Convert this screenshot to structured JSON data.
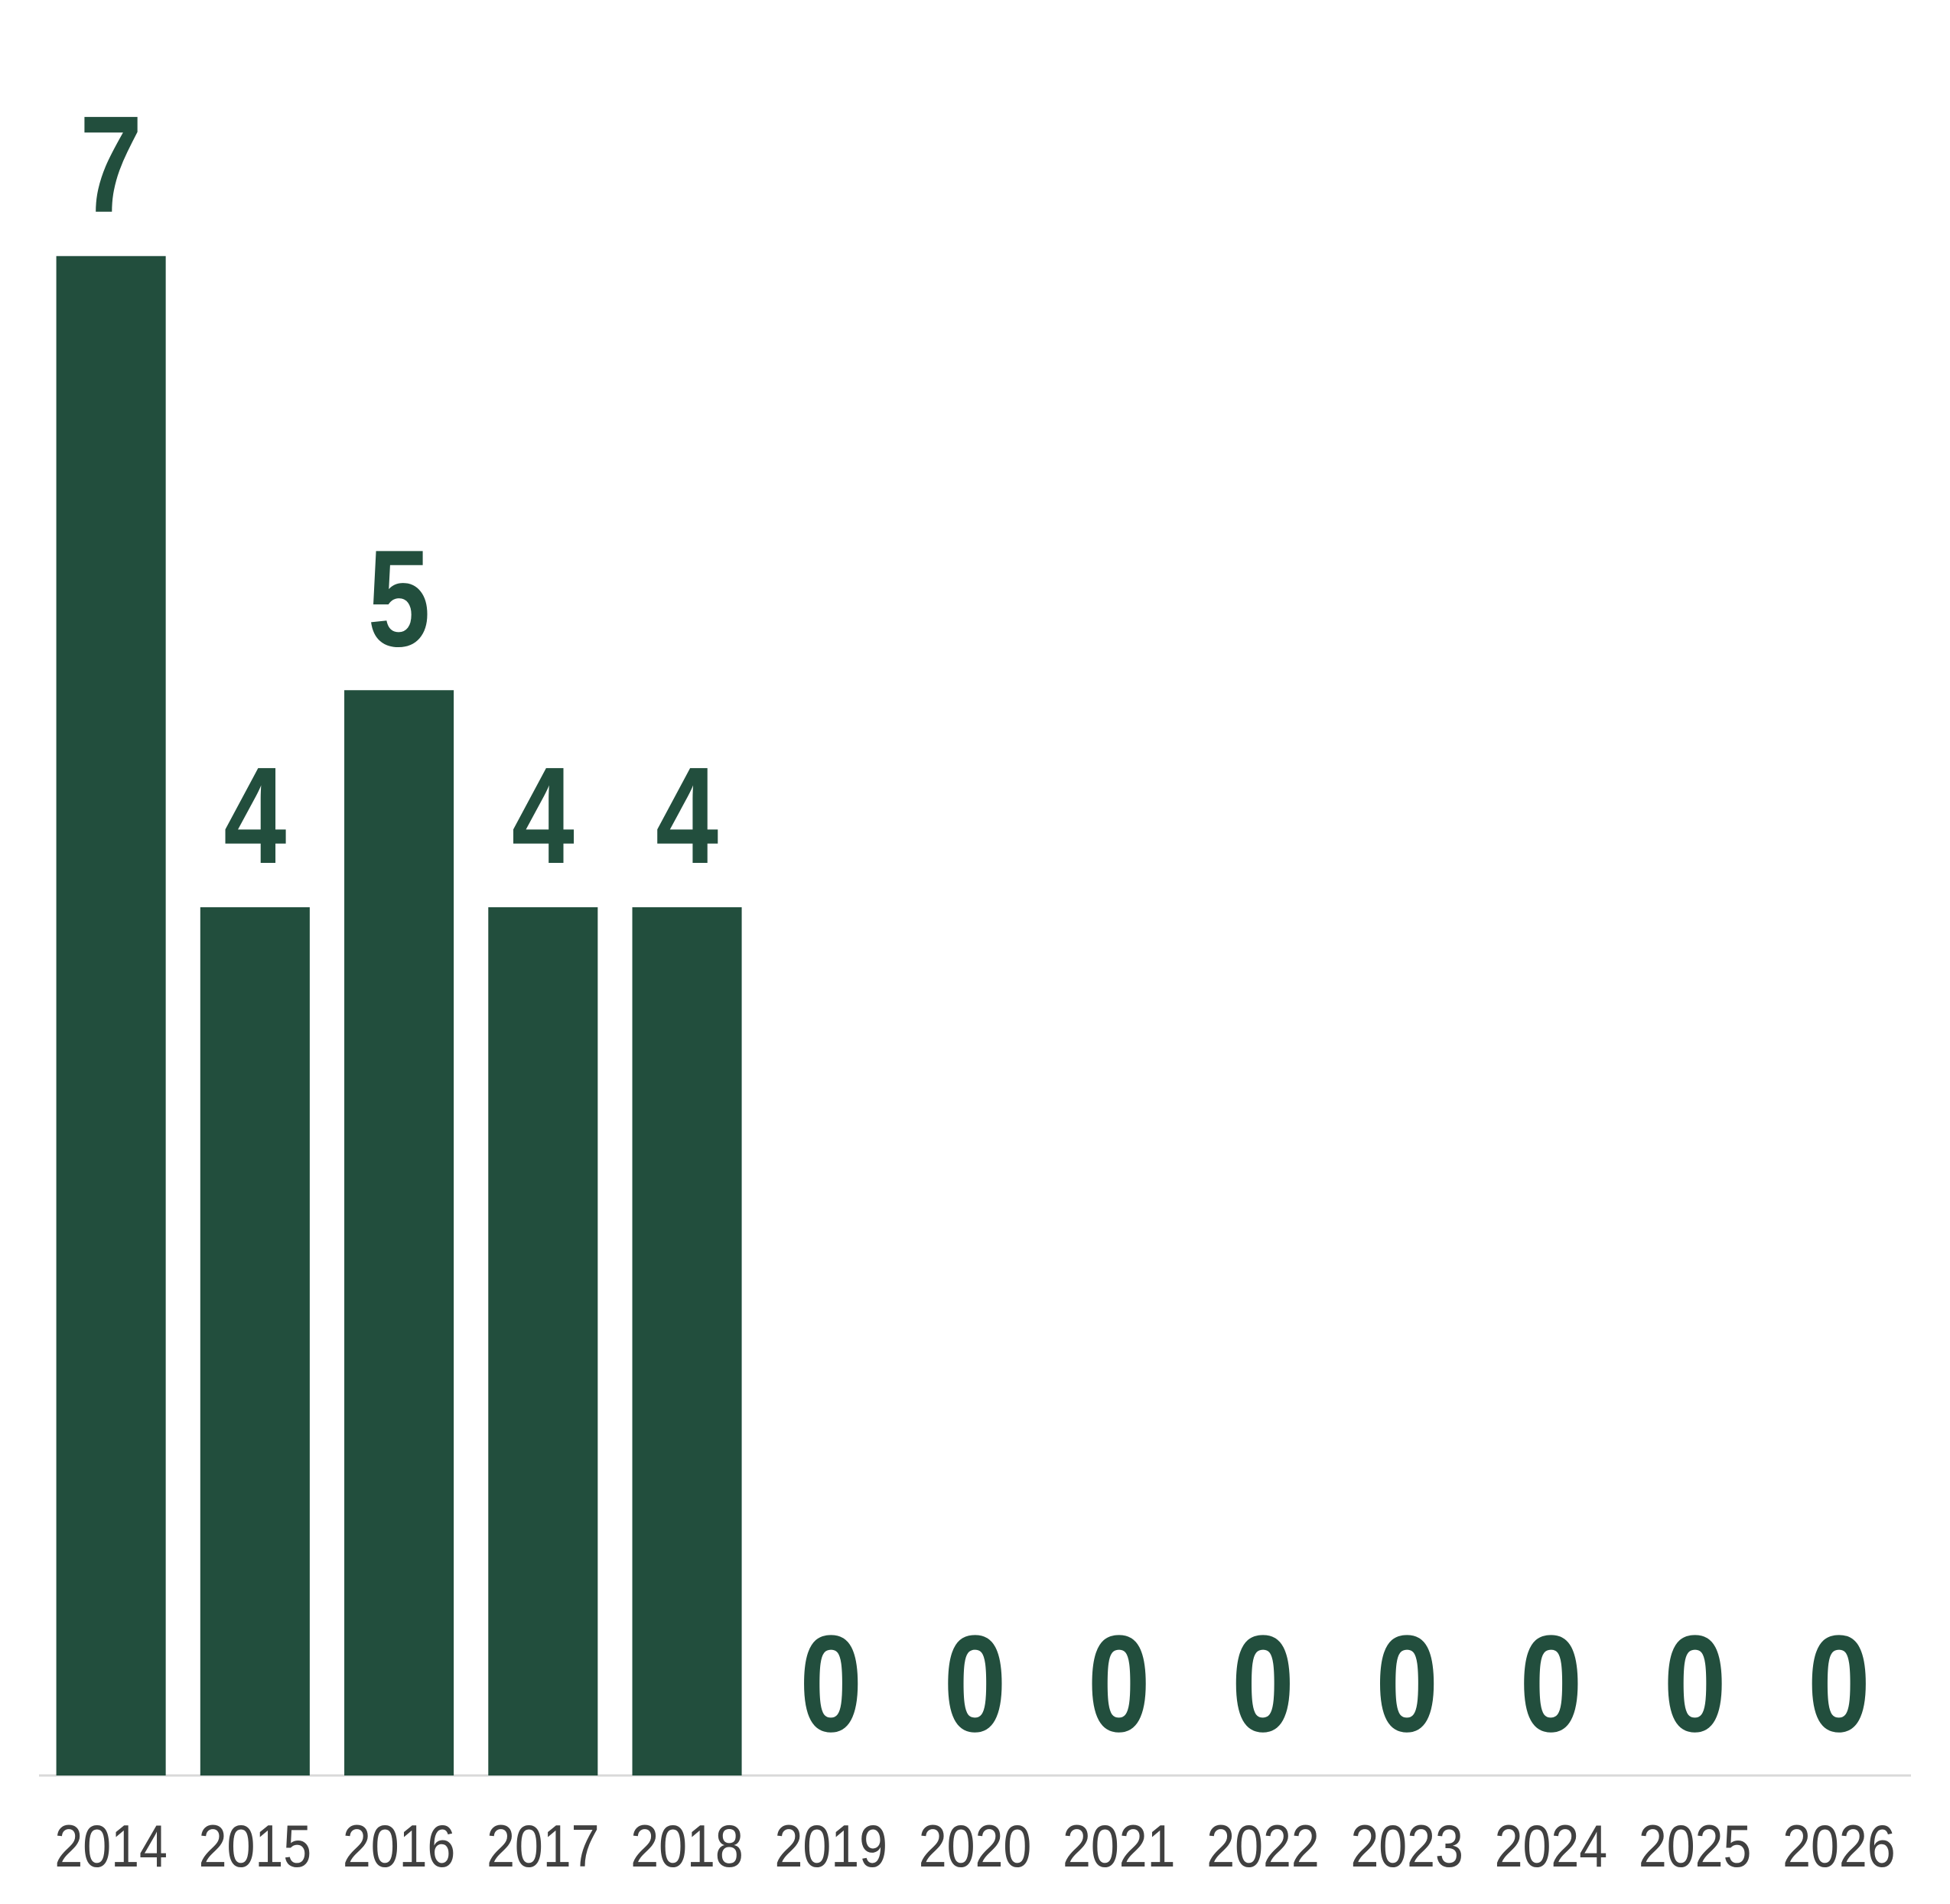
{
  "chart_data": {
    "type": "bar",
    "categories": [
      "2014",
      "2015",
      "2016",
      "2017",
      "2018",
      "2019",
      "2020",
      "2021",
      "2022",
      "2023",
      "2024",
      "2025",
      "2026"
    ],
    "values": [
      7,
      4,
      5,
      4,
      4,
      0,
      0,
      0,
      0,
      0,
      0,
      0,
      0
    ],
    "color": "#224e3d",
    "ylim": [
      0,
      8
    ]
  }
}
